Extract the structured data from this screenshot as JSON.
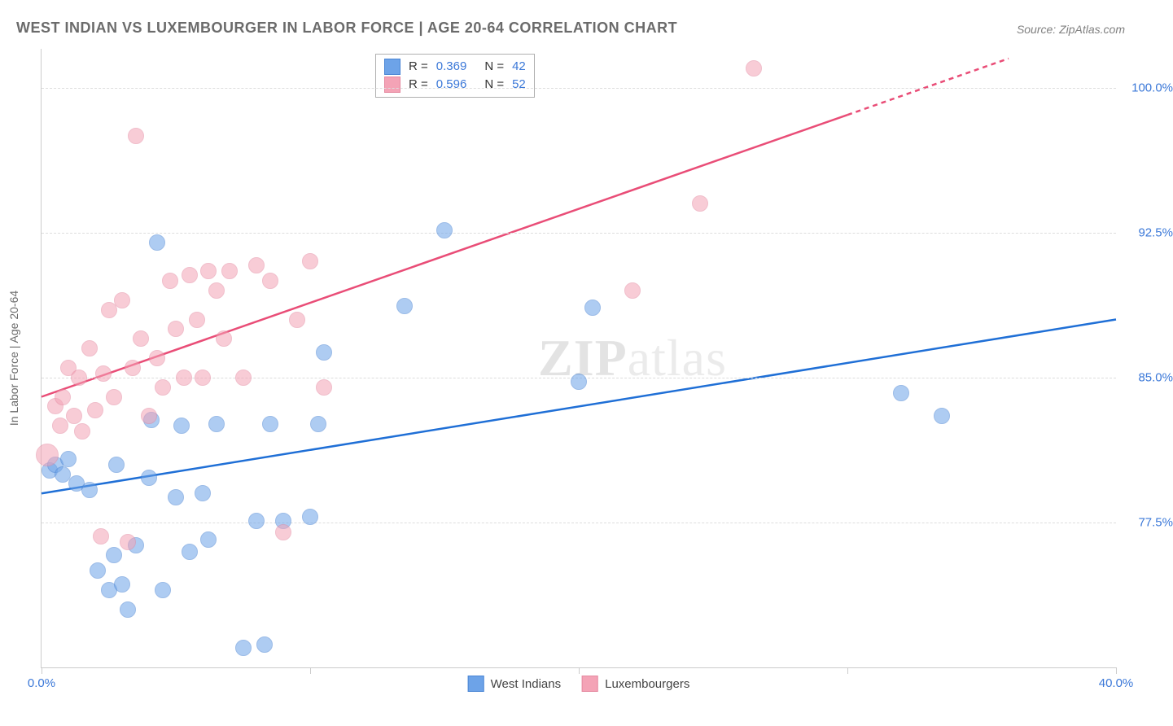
{
  "title": "WEST INDIAN VS LUXEMBOURGER IN LABOR FORCE | AGE 20-64 CORRELATION CHART",
  "source_label": "Source: ZipAtlas.com",
  "watermark_bold": "ZIP",
  "watermark_rest": "atlas",
  "chart": {
    "type": "scatter",
    "y_axis_title": "In Labor Force | Age 20-64",
    "xlim": [
      0,
      40
    ],
    "ylim": [
      70,
      102
    ],
    "x_ticks": [
      0,
      10,
      20,
      30,
      40
    ],
    "x_tick_labels": [
      "0.0%",
      "",
      "",
      "",
      "40.0%"
    ],
    "y_gridlines": [
      77.5,
      85.0,
      92.5,
      100.0
    ],
    "y_tick_labels": [
      "77.5%",
      "85.0%",
      "92.5%",
      "100.0%"
    ],
    "background_color": "#ffffff",
    "grid_color": "#dddddd",
    "axis_color": "#cccccc",
    "tick_label_color": "#3b78d8",
    "marker_radius": 9,
    "marker_opacity": 0.55,
    "line_width": 2.5,
    "series": [
      {
        "name": "West Indians",
        "color": "#6da3e8",
        "line_color": "#1f6fd6",
        "border_color": "#4a85d4",
        "stats": {
          "R": 0.369,
          "N": 42
        },
        "trend": {
          "x1": 0,
          "y1": 79.0,
          "x2": 40,
          "y2": 88.0
        },
        "points": [
          {
            "x": 0.3,
            "y": 80.2
          },
          {
            "x": 0.5,
            "y": 80.5
          },
          {
            "x": 0.8,
            "y": 80.0
          },
          {
            "x": 1.0,
            "y": 80.8
          },
          {
            "x": 1.3,
            "y": 79.5
          },
          {
            "x": 1.8,
            "y": 79.2
          },
          {
            "x": 2.1,
            "y": 75.0
          },
          {
            "x": 2.5,
            "y": 74.0
          },
          {
            "x": 2.7,
            "y": 75.8
          },
          {
            "x": 2.8,
            "y": 80.5
          },
          {
            "x": 3.0,
            "y": 74.3
          },
          {
            "x": 3.2,
            "y": 73.0
          },
          {
            "x": 3.5,
            "y": 76.3
          },
          {
            "x": 4.0,
            "y": 79.8
          },
          {
            "x": 4.1,
            "y": 82.8
          },
          {
            "x": 4.3,
            "y": 92.0
          },
          {
            "x": 4.5,
            "y": 74.0
          },
          {
            "x": 5.0,
            "y": 78.8
          },
          {
            "x": 5.2,
            "y": 82.5
          },
          {
            "x": 5.5,
            "y": 76.0
          },
          {
            "x": 6.0,
            "y": 79.0
          },
          {
            "x": 6.2,
            "y": 76.6
          },
          {
            "x": 6.5,
            "y": 82.6
          },
          {
            "x": 7.5,
            "y": 71.0
          },
          {
            "x": 8.0,
            "y": 77.6
          },
          {
            "x": 8.3,
            "y": 71.2
          },
          {
            "x": 8.5,
            "y": 82.6
          },
          {
            "x": 9.0,
            "y": 77.6
          },
          {
            "x": 10.0,
            "y": 77.8
          },
          {
            "x": 10.3,
            "y": 82.6
          },
          {
            "x": 10.5,
            "y": 86.3
          },
          {
            "x": 13.5,
            "y": 88.7
          },
          {
            "x": 15.0,
            "y": 92.6
          },
          {
            "x": 20.0,
            "y": 84.8
          },
          {
            "x": 20.5,
            "y": 88.6
          },
          {
            "x": 32.0,
            "y": 84.2
          },
          {
            "x": 33.5,
            "y": 83.0
          }
        ]
      },
      {
        "name": "Luxembourgers",
        "color": "#f4a3b6",
        "line_color": "#e94d77",
        "border_color": "#e58aa1",
        "stats": {
          "R": 0.596,
          "N": 52
        },
        "trend": {
          "x1": 0,
          "y1": 84.0,
          "x2": 36,
          "y2": 101.5
        },
        "trend_dash_after_x": 30,
        "points": [
          {
            "x": 0.2,
            "y": 81.0,
            "r": 13
          },
          {
            "x": 0.5,
            "y": 83.5
          },
          {
            "x": 0.7,
            "y": 82.5
          },
          {
            "x": 0.8,
            "y": 84.0
          },
          {
            "x": 1.0,
            "y": 85.5
          },
          {
            "x": 1.2,
            "y": 83.0
          },
          {
            "x": 1.4,
            "y": 85.0
          },
          {
            "x": 1.5,
            "y": 82.2
          },
          {
            "x": 1.8,
            "y": 86.5
          },
          {
            "x": 2.0,
            "y": 83.3
          },
          {
            "x": 2.2,
            "y": 76.8
          },
          {
            "x": 2.3,
            "y": 85.2
          },
          {
            "x": 2.5,
            "y": 88.5
          },
          {
            "x": 2.7,
            "y": 84.0
          },
          {
            "x": 3.0,
            "y": 89.0
          },
          {
            "x": 3.2,
            "y": 76.5
          },
          {
            "x": 3.4,
            "y": 85.5
          },
          {
            "x": 3.5,
            "y": 97.5
          },
          {
            "x": 3.7,
            "y": 87.0
          },
          {
            "x": 4.0,
            "y": 83.0
          },
          {
            "x": 4.3,
            "y": 86.0
          },
          {
            "x": 4.5,
            "y": 84.5
          },
          {
            "x": 4.8,
            "y": 90.0
          },
          {
            "x": 5.0,
            "y": 87.5
          },
          {
            "x": 5.3,
            "y": 85.0
          },
          {
            "x": 5.5,
            "y": 90.3
          },
          {
            "x": 5.8,
            "y": 88.0
          },
          {
            "x": 6.0,
            "y": 85.0
          },
          {
            "x": 6.2,
            "y": 90.5
          },
          {
            "x": 6.5,
            "y": 89.5
          },
          {
            "x": 6.8,
            "y": 87.0
          },
          {
            "x": 7.0,
            "y": 90.5
          },
          {
            "x": 7.5,
            "y": 85.0
          },
          {
            "x": 8.0,
            "y": 90.8
          },
          {
            "x": 8.5,
            "y": 90.0
          },
          {
            "x": 9.0,
            "y": 77.0
          },
          {
            "x": 9.5,
            "y": 88.0
          },
          {
            "x": 10.0,
            "y": 91.0
          },
          {
            "x": 10.5,
            "y": 84.5
          },
          {
            "x": 22.0,
            "y": 89.5
          },
          {
            "x": 24.5,
            "y": 94.0
          },
          {
            "x": 26.5,
            "y": 101.0
          }
        ]
      }
    ]
  }
}
